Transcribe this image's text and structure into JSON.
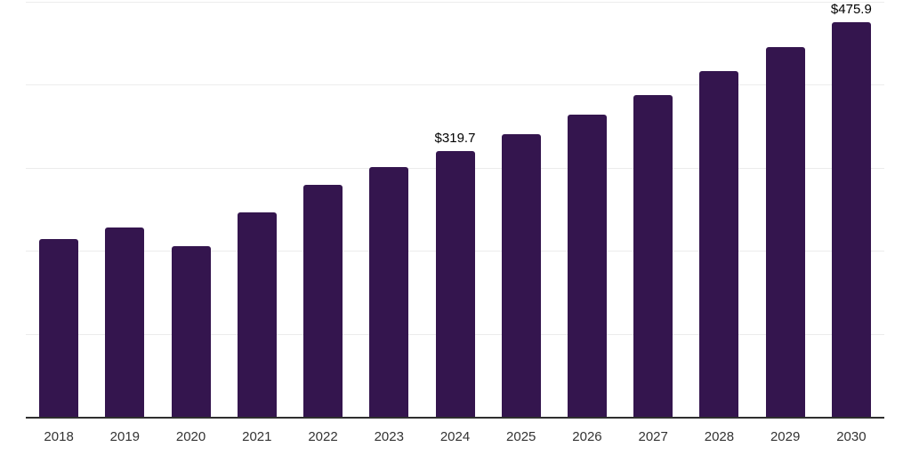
{
  "chart_data": {
    "type": "bar",
    "title": "",
    "xlabel": "",
    "ylabel": "",
    "categories": [
      "2018",
      "2019",
      "2020",
      "2021",
      "2022",
      "2023",
      "2024",
      "2025",
      "2026",
      "2027",
      "2028",
      "2029",
      "2030"
    ],
    "values": [
      213.8,
      228.0,
      205.9,
      246.3,
      279.8,
      301.2,
      319.7,
      340.8,
      363.7,
      387.9,
      416.5,
      445.1,
      475.9
    ],
    "data_labels": {
      "2024": "$319.7",
      "2030": "$475.9"
    },
    "ylim": [
      0,
      500
    ],
    "grid_interval": 100,
    "grid": true,
    "legend": false,
    "y_tick_labels_visible": false,
    "colors": {
      "bar": "#34154e",
      "grid": "#ececec",
      "axis": "#2f2f2f",
      "tick_label": "#333333",
      "data_label": "#000000",
      "background": "#ffffff"
    }
  }
}
